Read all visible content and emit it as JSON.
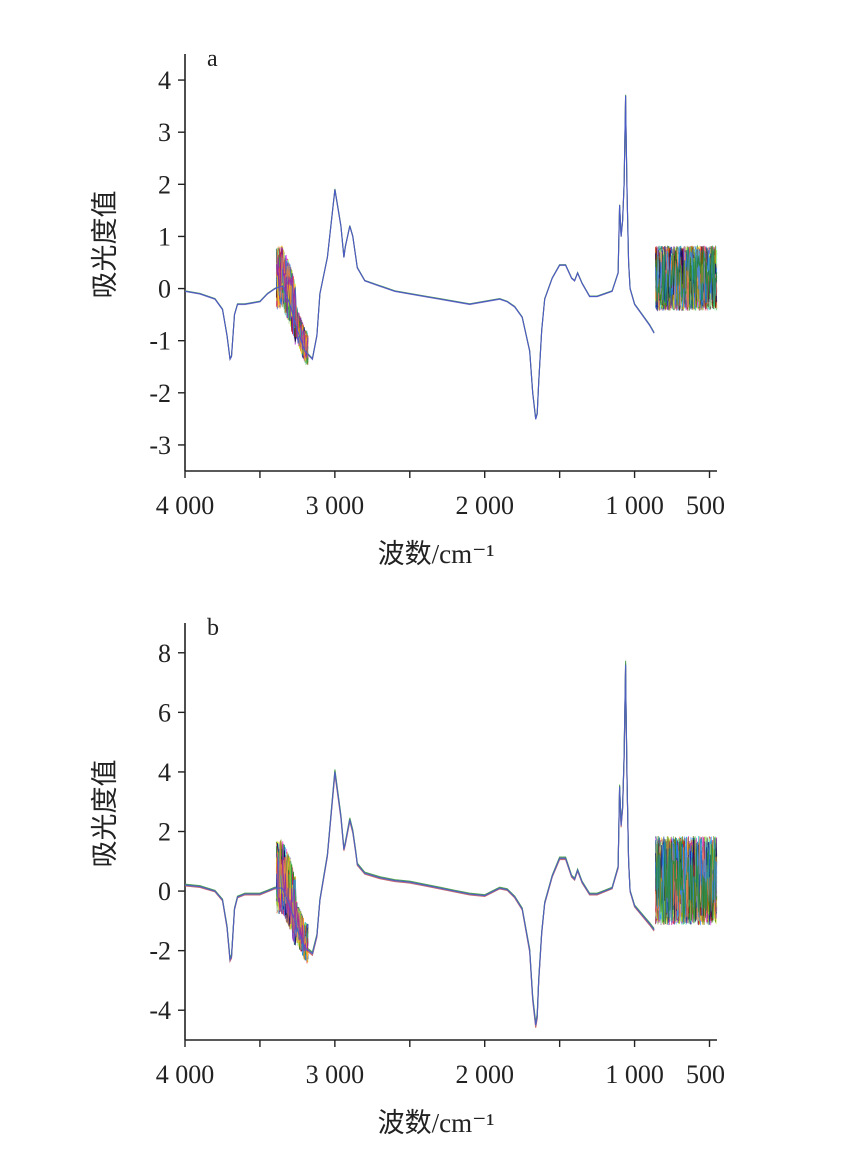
{
  "chart_data": [
    {
      "type": "line",
      "panel_label": "a",
      "xlabel": "波数/cm⁻¹",
      "ylabel": "吸光度值",
      "xlim": [
        4000,
        450
      ],
      "ylim": [
        -3.5,
        4.5
      ],
      "x_ticks": [
        4000,
        3000,
        2000,
        1000,
        500
      ],
      "x_tick_labels": [
        "4 000",
        "3 000",
        "2 000",
        "1 000",
        "500"
      ],
      "y_ticks": [
        4,
        3,
        2,
        1,
        0,
        -1,
        -2,
        -3
      ],
      "y_tick_labels": [
        "4",
        "3",
        "2",
        "1",
        "0",
        "-1",
        "-2",
        "-3"
      ],
      "grid": false,
      "legend": "none",
      "series_count_note": "many overlapping spectra",
      "series": [
        {
          "x": [
            4000,
            3900,
            3800,
            3750,
            3720,
            3700,
            3690,
            3680,
            3670,
            3650,
            3600,
            3500,
            3450,
            3400,
            3350,
            3300,
            3250,
            3200,
            3150,
            3120,
            3100,
            3050,
            3000,
            2960,
            2940,
            2930,
            2900,
            2880,
            2860,
            2850,
            2800,
            2700,
            2600,
            2500,
            2400,
            2300,
            2200,
            2100,
            2000,
            1900,
            1850,
            1800,
            1750,
            1700,
            1680,
            1660,
            1650,
            1640,
            1620,
            1600,
            1550,
            1500,
            1460,
            1420,
            1400,
            1380,
            1350,
            1300,
            1250,
            1200,
            1150,
            1110,
            1100,
            1090,
            1080,
            1070,
            1060,
            1058,
            1050,
            1040,
            1030,
            1000,
            950,
            900,
            870
          ],
          "y": [
            -0.05,
            -0.1,
            -0.2,
            -0.4,
            -0.9,
            -1.35,
            -1.3,
            -0.9,
            -0.5,
            -0.3,
            -0.3,
            -0.25,
            -0.1,
            0.0,
            0.05,
            -0.3,
            -0.8,
            -1.2,
            -1.35,
            -0.9,
            -0.1,
            0.6,
            1.9,
            1.2,
            0.6,
            0.8,
            1.2,
            1.0,
            0.6,
            0.4,
            0.15,
            0.05,
            -0.05,
            -0.1,
            -0.15,
            -0.2,
            -0.25,
            -0.3,
            -0.25,
            -0.2,
            -0.25,
            -0.35,
            -0.55,
            -1.2,
            -2.0,
            -2.5,
            -2.4,
            -1.8,
            -0.8,
            -0.2,
            0.2,
            0.45,
            0.45,
            0.2,
            0.15,
            0.3,
            0.1,
            -0.15,
            -0.15,
            -0.1,
            -0.05,
            0.3,
            1.6,
            1.0,
            1.3,
            2.0,
            3.7,
            3.2,
            1.8,
            0.5,
            0.0,
            -0.3,
            -0.5,
            -0.7,
            -0.85
          ]
        }
      ]
    },
    {
      "type": "line",
      "panel_label": "b",
      "xlabel": "波数/cm⁻¹",
      "ylabel": "吸光度值",
      "xlim": [
        4000,
        450
      ],
      "ylim": [
        -5,
        9
      ],
      "x_ticks": [
        4000,
        3000,
        2000,
        1000,
        500
      ],
      "x_tick_labels": [
        "4 000",
        "3 000",
        "2 000",
        "1 000",
        "500"
      ],
      "y_ticks": [
        8,
        6,
        4,
        2,
        0,
        -2,
        -4
      ],
      "y_tick_labels": [
        "8",
        "6",
        "4",
        "2",
        "0",
        "-2",
        "-4"
      ],
      "grid": false,
      "legend": "none",
      "series_count_note": "many overlapping spectra",
      "series": [
        {
          "x": [
            4000,
            3900,
            3800,
            3750,
            3720,
            3700,
            3690,
            3680,
            3670,
            3650,
            3600,
            3500,
            3450,
            3400,
            3350,
            3300,
            3250,
            3200,
            3150,
            3120,
            3100,
            3050,
            3000,
            2960,
            2940,
            2930,
            2900,
            2880,
            2860,
            2850,
            2800,
            2700,
            2600,
            2500,
            2400,
            2300,
            2200,
            2100,
            2000,
            1900,
            1850,
            1800,
            1750,
            1700,
            1680,
            1660,
            1650,
            1640,
            1620,
            1600,
            1550,
            1500,
            1460,
            1420,
            1400,
            1380,
            1350,
            1300,
            1250,
            1200,
            1150,
            1110,
            1100,
            1090,
            1080,
            1070,
            1060,
            1058,
            1050,
            1040,
            1030,
            1000,
            950,
            900,
            870
          ],
          "y": [
            0.2,
            0.15,
            0.0,
            -0.3,
            -1.2,
            -2.3,
            -2.2,
            -1.4,
            -0.6,
            -0.2,
            -0.1,
            -0.1,
            0.0,
            0.1,
            0.1,
            -0.5,
            -1.3,
            -1.9,
            -2.1,
            -1.5,
            -0.3,
            1.2,
            4.0,
            2.5,
            1.4,
            1.6,
            2.4,
            2.0,
            1.3,
            0.9,
            0.6,
            0.45,
            0.35,
            0.3,
            0.2,
            0.1,
            0.0,
            -0.1,
            -0.15,
            0.1,
            0.05,
            -0.2,
            -0.6,
            -2.0,
            -3.6,
            -4.5,
            -4.2,
            -3.0,
            -1.4,
            -0.4,
            0.5,
            1.1,
            1.1,
            0.5,
            0.4,
            0.7,
            0.3,
            -0.1,
            -0.1,
            0.0,
            0.1,
            0.8,
            3.5,
            2.2,
            2.8,
            4.5,
            7.6,
            6.5,
            3.6,
            1.0,
            0.0,
            -0.5,
            -0.8,
            -1.1,
            -1.3
          ]
        }
      ]
    }
  ]
}
